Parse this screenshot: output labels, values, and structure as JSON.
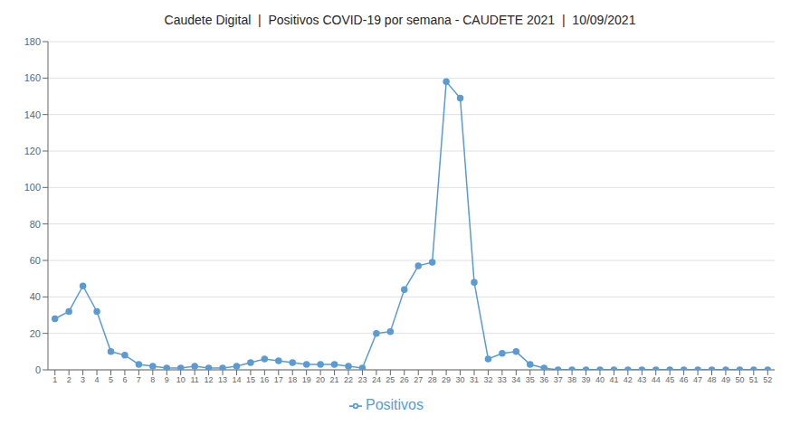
{
  "chart_data": {
    "type": "line",
    "title": "Caudete Digital  |  Positivos COVID-19 por semana - CAUDETE 2021  |  10/09/2021",
    "x": [
      1,
      2,
      3,
      4,
      5,
      6,
      7,
      8,
      9,
      10,
      11,
      12,
      13,
      14,
      15,
      16,
      17,
      18,
      19,
      20,
      21,
      22,
      23,
      24,
      25,
      26,
      27,
      28,
      29,
      30,
      31,
      32,
      33,
      34,
      35,
      36,
      37,
      38,
      39,
      40,
      41,
      42,
      43,
      44,
      45,
      46,
      47,
      48,
      49,
      50,
      51,
      52
    ],
    "series": [
      {
        "name": "Positivos",
        "color": "#5B9BD5",
        "marker": "circle",
        "values": [
          28,
          32,
          46,
          32,
          10,
          8,
          3,
          2,
          1,
          1,
          2,
          1,
          1,
          2,
          4,
          6,
          5,
          4,
          3,
          3,
          3,
          2,
          1,
          20,
          21,
          44,
          57,
          59,
          158,
          149,
          48,
          6,
          9,
          10,
          3,
          1,
          0,
          0,
          0,
          0,
          0,
          0,
          0,
          0,
          0,
          0,
          0,
          0,
          0,
          0,
          0,
          0
        ]
      }
    ],
    "xlim": [
      0.5,
      52.5
    ],
    "xticks": [
      1,
      2,
      3,
      4,
      5,
      6,
      7,
      8,
      9,
      10,
      11,
      12,
      13,
      14,
      15,
      16,
      17,
      18,
      19,
      20,
      21,
      22,
      23,
      24,
      25,
      26,
      27,
      28,
      29,
      30,
      31,
      32,
      33,
      34,
      35,
      36,
      37,
      38,
      39,
      40,
      41,
      42,
      43,
      44,
      45,
      46,
      47,
      48,
      49,
      50,
      51,
      52
    ],
    "ylim": [
      0,
      180
    ],
    "yticks": [
      0,
      20,
      40,
      60,
      80,
      100,
      120,
      140,
      160,
      180
    ],
    "grid": "y",
    "legend": "bottom"
  }
}
